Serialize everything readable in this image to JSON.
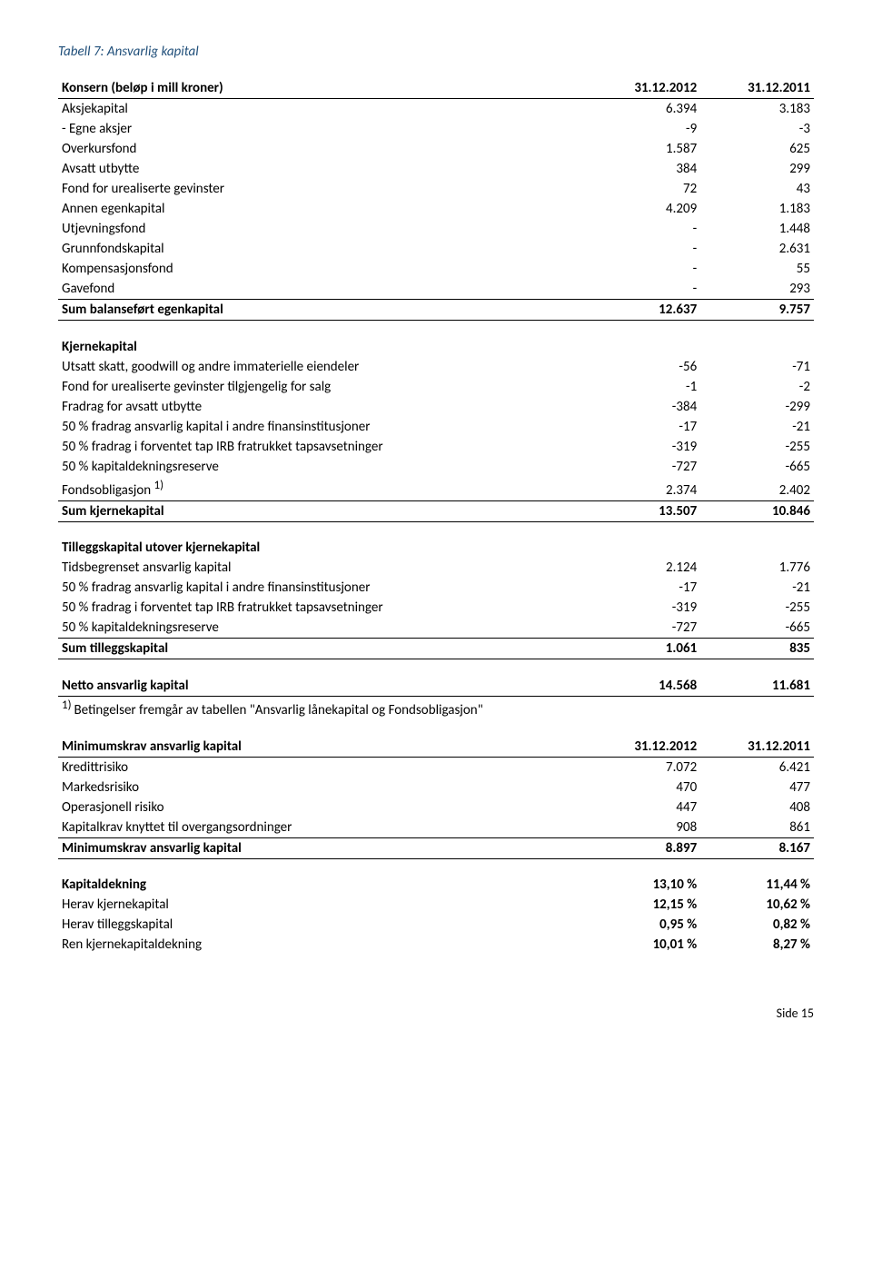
{
  "title": "Tabell 7: Ansvarlig kapital",
  "footer": "Side 15",
  "section1": {
    "header": {
      "label": "Konsern (beløp i mill kroner)",
      "c1": "31.12.2012",
      "c2": "31.12.2011"
    },
    "rows": [
      {
        "label": "Aksjekapital",
        "c1": "6.394",
        "c2": "3.183"
      },
      {
        "label": "- Egne aksjer",
        "c1": "-9",
        "c2": "-3"
      },
      {
        "label": "Overkursfond",
        "c1": "1.587",
        "c2": "625"
      },
      {
        "label": "Avsatt utbytte",
        "c1": "384",
        "c2": "299"
      },
      {
        "label": "Fond for urealiserte gevinster",
        "c1": "72",
        "c2": "43"
      },
      {
        "label": "Annen egenkapital",
        "c1": "4.209",
        "c2": "1.183"
      },
      {
        "label": "Utjevningsfond",
        "c1": "-",
        "c2": "1.448"
      },
      {
        "label": "Grunnfondskapital",
        "c1": "-",
        "c2": "2.631"
      },
      {
        "label": "Kompensasjonsfond",
        "c1": "-",
        "c2": "55"
      },
      {
        "label": "Gavefond",
        "c1": "-",
        "c2": "293"
      }
    ],
    "sum": {
      "label": "Sum balanseført egenkapital",
      "c1": "12.637",
      "c2": "9.757"
    }
  },
  "section2": {
    "heading": "Kjernekapital",
    "rows": [
      {
        "label": "Utsatt skatt, goodwill og andre immaterielle eiendeler",
        "c1": "-56",
        "c2": "-71"
      },
      {
        "label": "Fond for urealiserte gevinster tilgjengelig for salg",
        "c1": "-1",
        "c2": "-2"
      },
      {
        "label": "Fradrag for avsatt utbytte",
        "c1": "-384",
        "c2": "-299"
      },
      {
        "label": "50 % fradrag ansvarlig kapital i andre finansinstitusjoner",
        "c1": "-17",
        "c2": "-21"
      },
      {
        "label": "50 % fradrag i forventet tap IRB fratrukket tapsavsetninger",
        "c1": "-319",
        "c2": "-255"
      },
      {
        "label": "50 % kapitaldekningsreserve",
        "c1": "-727",
        "c2": "-665"
      }
    ],
    "fondsobl": {
      "label": "Fondsobligasjon ",
      "sup": "1)",
      "c1": "2.374",
      "c2": "2.402"
    },
    "sum": {
      "label": "Sum kjernekapital",
      "c1": "13.507",
      "c2": "10.846"
    }
  },
  "section3": {
    "heading": "Tilleggskapital utover kjernekapital",
    "rows": [
      {
        "label": "Tidsbegrenset ansvarlig kapital",
        "c1": "2.124",
        "c2": "1.776"
      },
      {
        "label": "50 % fradrag ansvarlig kapital i andre finansinstitusjoner",
        "c1": "-17",
        "c2": "-21"
      },
      {
        "label": "50 % fradrag i forventet tap IRB fratrukket tapsavsetninger",
        "c1": "-319",
        "c2": "-255"
      },
      {
        "label": "50 % kapitaldekningsreserve",
        "c1": "-727",
        "c2": "-665"
      }
    ],
    "sum": {
      "label": "Sum tilleggskapital",
      "c1": "1.061",
      "c2": "835"
    }
  },
  "netto": {
    "label": "Netto ansvarlig kapital",
    "c1": "14.568",
    "c2": "11.681"
  },
  "footnote": {
    "sup": "1) ",
    "text": "Betingelser fremgår av tabellen \"Ansvarlig lånekapital og Fondsobligasjon\""
  },
  "section4": {
    "header": {
      "label": "Minimumskrav ansvarlig kapital",
      "c1": "31.12.2012",
      "c2": "31.12.2011"
    },
    "rows": [
      {
        "label": "Kredittrisiko",
        "c1": "7.072",
        "c2": "6.421"
      },
      {
        "label": "Markedsrisiko",
        "c1": "470",
        "c2": "477"
      },
      {
        "label": "Operasjonell risiko",
        "c1": "447",
        "c2": "408"
      },
      {
        "label": "Kapitalkrav knyttet til overgangsordninger",
        "c1": "908",
        "c2": "861"
      }
    ],
    "sum": {
      "label": "Minimumskrav ansvarlig kapital",
      "c1": "8.897",
      "c2": "8.167"
    }
  },
  "section5": {
    "rows": [
      {
        "label": "Kapitaldekning",
        "c1": "13,10 %",
        "c2": "11,44 %",
        "bold": true
      },
      {
        "label": "Herav kjernekapital",
        "c1": "12,15 %",
        "c2": "10,62 %"
      },
      {
        "label": "Herav tilleggskapital",
        "c1": "0,95 %",
        "c2": "0,82 %"
      },
      {
        "label": "Ren kjernekapitaldekning",
        "c1": "10,01 %",
        "c2": "8,27 %"
      }
    ]
  }
}
